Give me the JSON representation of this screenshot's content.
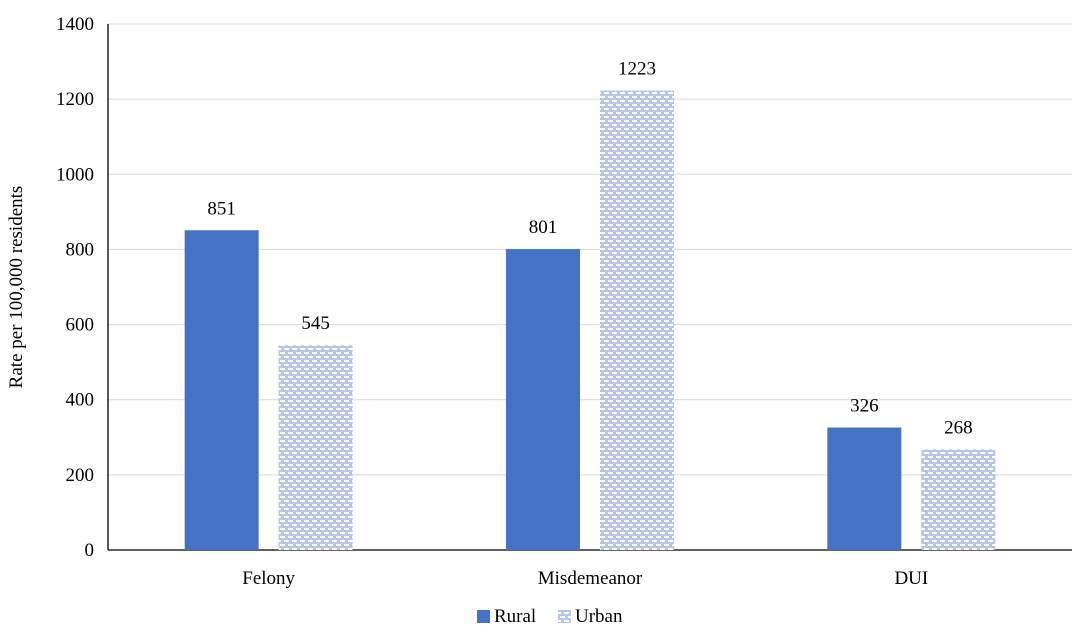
{
  "chart_data": {
    "type": "bar",
    "categories": [
      "Felony",
      "Misdemeanor",
      "DUI"
    ],
    "series": [
      {
        "name": "Rural",
        "values": [
          851,
          801,
          326
        ],
        "color": "#4472C4",
        "fill_style": "solid"
      },
      {
        "name": "Urban",
        "values": [
          545,
          1223,
          268
        ],
        "color": "#B4C7E7",
        "fill_style": "dashed-pattern"
      }
    ],
    "title": "",
    "xlabel": "",
    "ylabel": "Rate per 100,000 residents",
    "ylim": [
      0,
      1400
    ],
    "yticks": [
      0,
      200,
      400,
      600,
      800,
      1000,
      1200,
      1400
    ],
    "y_tick_labels": [
      "0",
      "200",
      "400",
      "600",
      "800",
      "1000",
      "1200",
      "1400"
    ],
    "grid": true,
    "data_labels": true,
    "legend_position": "bottom-center"
  }
}
